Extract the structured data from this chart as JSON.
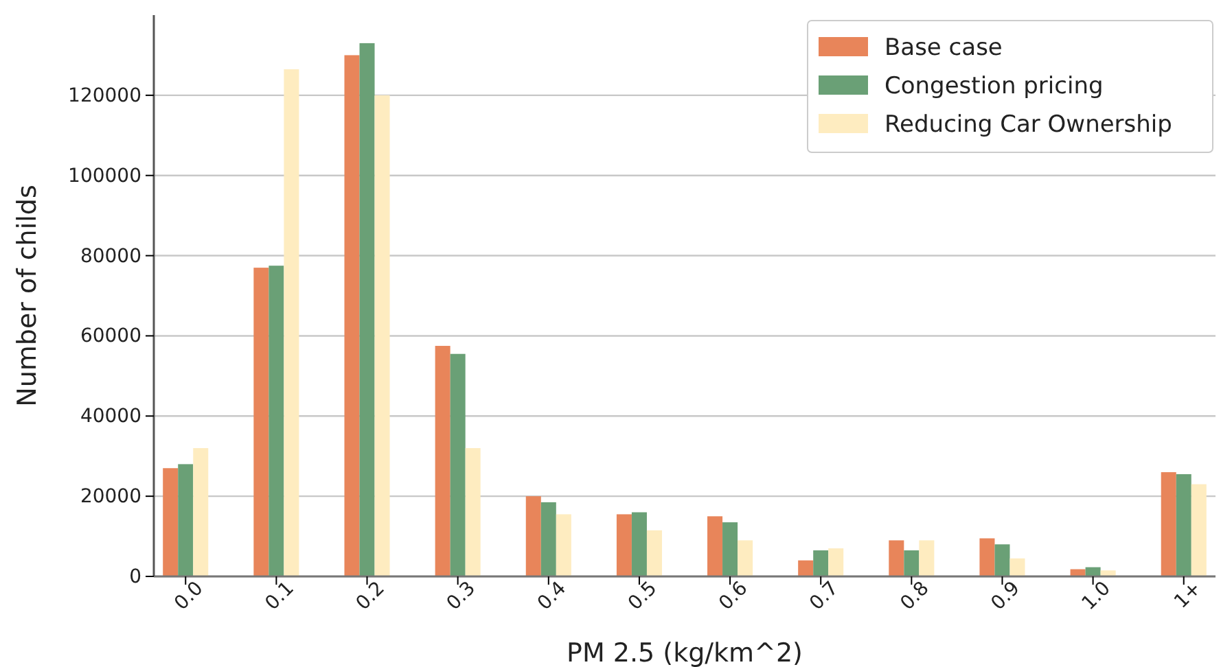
{
  "chart_data": {
    "type": "bar",
    "xlabel": "PM 2.5 (kg/km^2)",
    "ylabel": "Number of childs",
    "categories": [
      "0.0",
      "0.1",
      "0.2",
      "0.3",
      "0.4",
      "0.5",
      "0.6",
      "0.7",
      "0.8",
      "0.9",
      "1.0",
      "1+"
    ],
    "series": [
      {
        "name": "Base case",
        "color": "#e8855a",
        "values": [
          27000,
          77000,
          130000,
          57500,
          20000,
          15500,
          15000,
          4000,
          9000,
          9500,
          1800,
          26000
        ]
      },
      {
        "name": "Congestion pricing",
        "color": "#6aa076",
        "values": [
          28000,
          77500,
          133000,
          55500,
          18500,
          16000,
          13500,
          6500,
          6500,
          8000,
          2300,
          25500
        ]
      },
      {
        "name": "Reducing Car Ownership",
        "color": "#feecc0",
        "values": [
          32000,
          126500,
          120000,
          32000,
          15500,
          11500,
          9000,
          7000,
          9000,
          4500,
          1500,
          23000
        ]
      }
    ],
    "ylim": [
      0,
      140000
    ],
    "yticks": [
      0,
      20000,
      40000,
      60000,
      80000,
      100000,
      120000
    ],
    "grid": "y",
    "legend": "top right"
  }
}
